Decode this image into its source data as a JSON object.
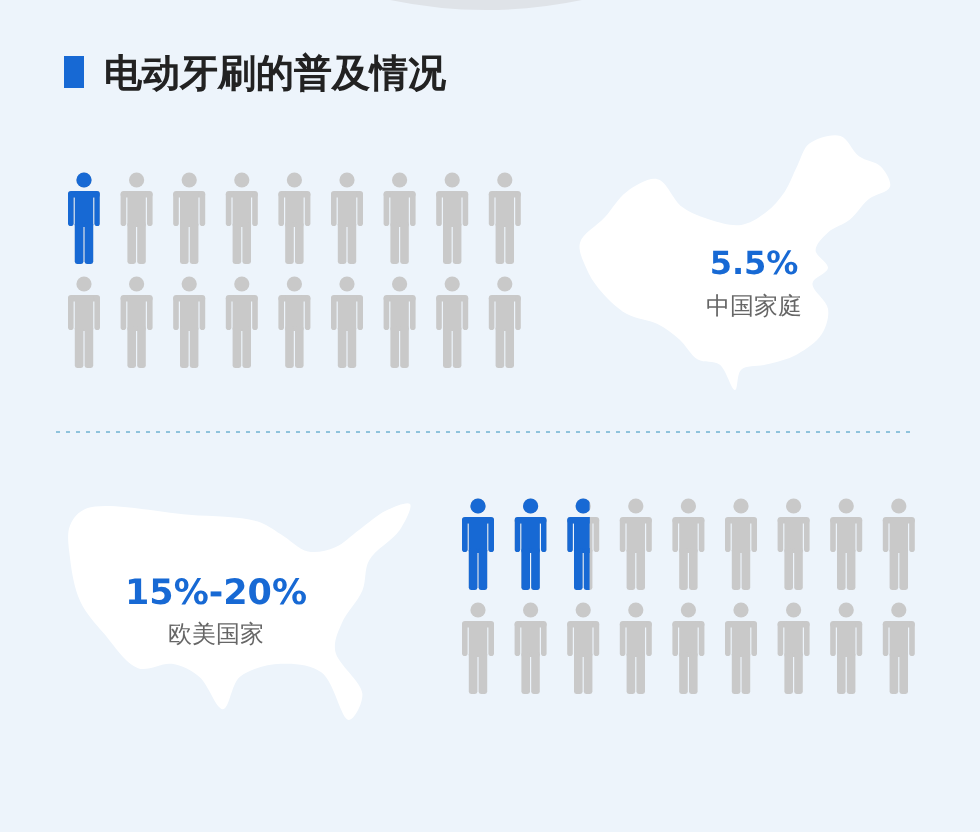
{
  "chart_data": {
    "type": "other",
    "title": "电动牙刷的普及情况",
    "categories": [
      "中国家庭",
      "欧美国家"
    ],
    "values": [
      5.5,
      15
    ],
    "value_labels": [
      "5.5%",
      "15%-20%"
    ]
  }
}
